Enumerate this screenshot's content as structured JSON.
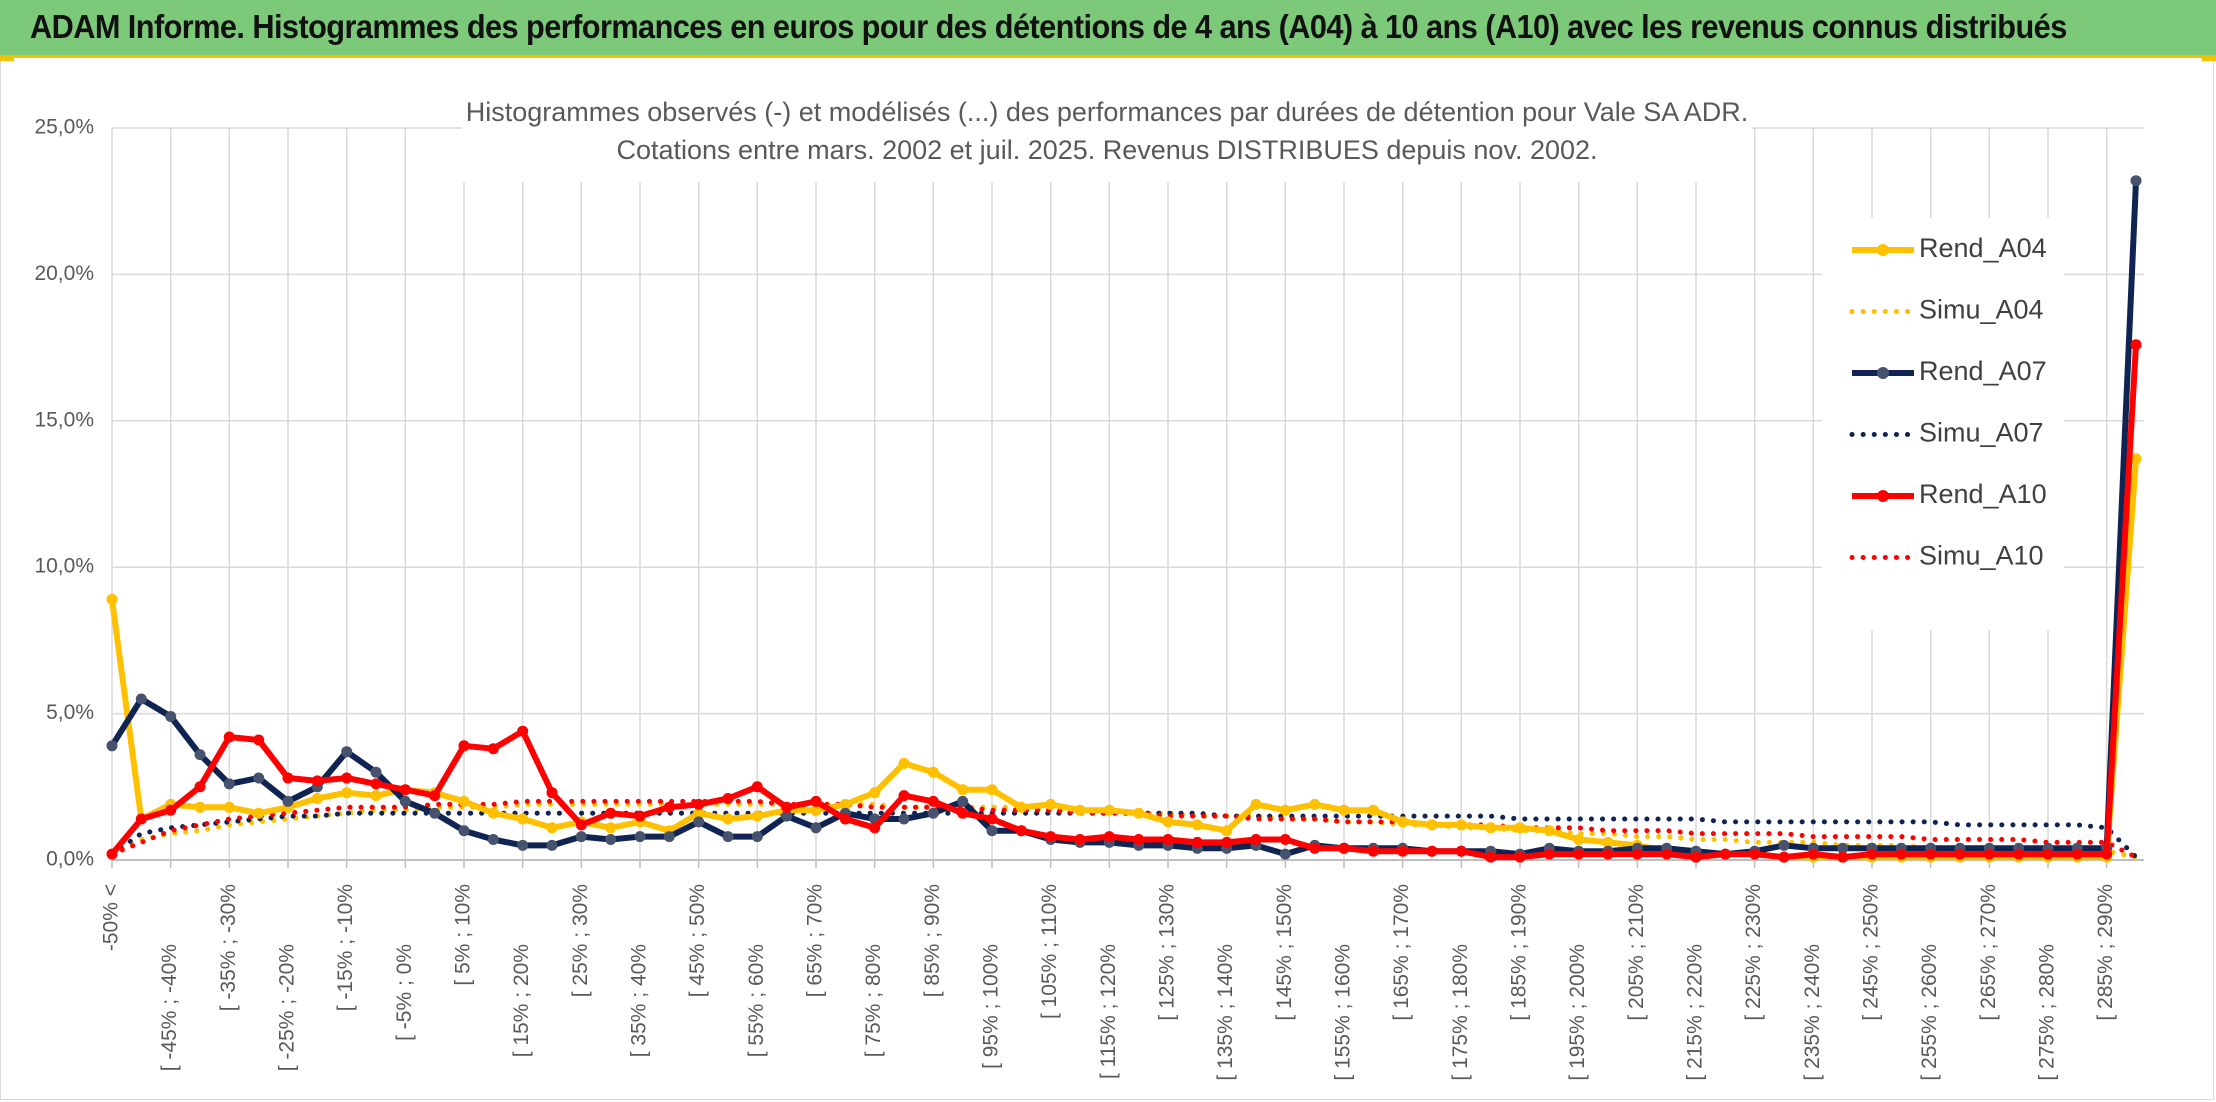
{
  "banner": {
    "title": "ADAM Informe. Histogrammes des performances en euros pour des détentions de 4 ans (A04) à 10 ans (A10) avec les revenus connus distribués",
    "accent": "#f2c200",
    "background": "#7dc97a"
  },
  "chart_data": {
    "type": "line",
    "title_lines": [
      "Histogrammes observés (-) et modélisés (...) des performances par durées de détention pour Vale SA ADR.",
      "Cotations entre mars. 2002 et juil. 2025. Revenus DISTRIBUES depuis nov. 2002."
    ],
    "ylim": [
      0,
      25
    ],
    "y_ticks": [
      "0,0%",
      "5,0%",
      "10,0%",
      "15,0%",
      "20,0%",
      "25,0%"
    ],
    "x_tick_labels": [
      "-50% <",
      "[ -45% ; -40%",
      "[ -35% ; -30%",
      "[ -25% ; -20%",
      "[ -15% ; -10%",
      "[ -5% ; 0%",
      "[ 5% ; 10%",
      "[ 15% ; 20%",
      "[ 25% ; 30%",
      "[ 35% ; 40%",
      "[ 45% ; 50%",
      "[ 55% ; 60%",
      "[ 65% ; 70%",
      "[ 75% ; 80%",
      "[ 85% ; 90%",
      "[ 95% ; 100%",
      "[ 105% ; 110%",
      "[ 115% ; 120%",
      "[ 125% ; 130%",
      "[ 135% ; 140%",
      "[ 145% ; 150%",
      "[ 155% ; 160%",
      "[ 165% ; 170%",
      "[ 175% ; 180%",
      "[ 185% ; 190%",
      "[ 195% ; 200%",
      "[ 205% ; 210%",
      "[ 215% ; 220%",
      "[ 225% ; 230%",
      "[ 235% ; 240%",
      "[ 245% ; 250%",
      "[ 255% ; 260%",
      "[ 265% ; 270%",
      "[ 275% ; 280%",
      "[ 285% ; 290%"
    ],
    "n_points": 70,
    "grid": true,
    "legend_position": "right",
    "series": [
      {
        "name": "Rend_A04",
        "color": "#ffc000",
        "style": "solid",
        "values": [
          8.9,
          1.4,
          1.9,
          1.8,
          1.8,
          1.6,
          1.8,
          2.1,
          2.3,
          2.2,
          2.4,
          2.3,
          2.0,
          1.6,
          1.4,
          1.1,
          1.3,
          1.1,
          1.3,
          1.0,
          1.6,
          1.4,
          1.5,
          1.7,
          1.7,
          1.9,
          2.3,
          3.3,
          3.0,
          2.4,
          2.4,
          1.8,
          1.9,
          1.7,
          1.7,
          1.6,
          1.3,
          1.2,
          1.0,
          1.9,
          1.7,
          1.9,
          1.7,
          1.7,
          1.3,
          1.2,
          1.2,
          1.1,
          1.1,
          1.0,
          0.7,
          0.6,
          0.5,
          0.3,
          0.2,
          0.2,
          0.2,
          0.1,
          0.1,
          0.1,
          0.1,
          0.1,
          0.1,
          0.1,
          0.1,
          0.1,
          0.1,
          0.1,
          0.1,
          13.7
        ]
      },
      {
        "name": "Simu_A04",
        "color": "#ffc000",
        "style": "dotted",
        "values": [
          0.2,
          0.7,
          0.9,
          1.0,
          1.2,
          1.3,
          1.4,
          1.5,
          1.6,
          1.7,
          1.7,
          1.8,
          1.8,
          1.8,
          1.9,
          1.9,
          1.9,
          1.9,
          1.9,
          1.9,
          1.9,
          1.9,
          1.9,
          1.9,
          1.9,
          1.9,
          1.9,
          1.8,
          1.8,
          1.8,
          1.8,
          1.8,
          1.7,
          1.7,
          1.7,
          1.6,
          1.6,
          1.5,
          1.5,
          1.5,
          1.4,
          1.4,
          1.3,
          1.3,
          1.2,
          1.2,
          1.1,
          1.1,
          1.0,
          1.0,
          0.9,
          0.9,
          0.8,
          0.8,
          0.7,
          0.7,
          0.6,
          0.6,
          0.6,
          0.5,
          0.5,
          0.5,
          0.4,
          0.4,
          0.4,
          0.3,
          0.3,
          0.3,
          0.3,
          0.1
        ]
      },
      {
        "name": "Rend_A07",
        "color": "#0f2452",
        "style": "solid",
        "values": [
          3.9,
          5.5,
          4.9,
          3.6,
          2.6,
          2.8,
          2.0,
          2.5,
          3.7,
          3.0,
          2.0,
          1.6,
          1.0,
          0.7,
          0.5,
          0.5,
          0.8,
          0.7,
          0.8,
          0.8,
          1.3,
          0.8,
          0.8,
          1.5,
          1.1,
          1.6,
          1.4,
          1.4,
          1.6,
          2.0,
          1.0,
          1.0,
          0.7,
          0.6,
          0.6,
          0.5,
          0.5,
          0.4,
          0.4,
          0.5,
          0.2,
          0.5,
          0.4,
          0.4,
          0.4,
          0.3,
          0.3,
          0.3,
          0.2,
          0.4,
          0.3,
          0.3,
          0.4,
          0.4,
          0.3,
          0.2,
          0.3,
          0.5,
          0.4,
          0.4,
          0.4,
          0.4,
          0.4,
          0.4,
          0.4,
          0.4,
          0.4,
          0.4,
          0.4,
          23.2
        ]
      },
      {
        "name": "Simu_A07",
        "color": "#0f2452",
        "style": "dotted",
        "values": [
          0.2,
          0.9,
          1.1,
          1.2,
          1.3,
          1.4,
          1.5,
          1.5,
          1.6,
          1.6,
          1.6,
          1.6,
          1.6,
          1.6,
          1.6,
          1.6,
          1.6,
          1.6,
          1.6,
          1.6,
          1.6,
          1.6,
          1.6,
          1.6,
          1.6,
          1.6,
          1.6,
          1.6,
          1.6,
          1.6,
          1.6,
          1.6,
          1.6,
          1.6,
          1.6,
          1.6,
          1.6,
          1.6,
          1.5,
          1.5,
          1.5,
          1.5,
          1.5,
          1.5,
          1.5,
          1.5,
          1.5,
          1.5,
          1.4,
          1.4,
          1.4,
          1.4,
          1.4,
          1.4,
          1.4,
          1.3,
          1.3,
          1.3,
          1.3,
          1.3,
          1.3,
          1.3,
          1.3,
          1.2,
          1.2,
          1.2,
          1.2,
          1.2,
          1.1,
          0.1
        ]
      },
      {
        "name": "Rend_A10",
        "color": "#ff0000",
        "style": "solid",
        "values": [
          0.2,
          1.4,
          1.7,
          2.5,
          4.2,
          4.1,
          2.8,
          2.7,
          2.8,
          2.6,
          2.4,
          2.2,
          3.9,
          3.8,
          4.4,
          2.3,
          1.2,
          1.6,
          1.5,
          1.8,
          1.9,
          2.1,
          2.5,
          1.8,
          2.0,
          1.4,
          1.1,
          2.2,
          2.0,
          1.6,
          1.4,
          1.0,
          0.8,
          0.7,
          0.8,
          0.7,
          0.7,
          0.6,
          0.6,
          0.7,
          0.7,
          0.4,
          0.4,
          0.3,
          0.3,
          0.3,
          0.3,
          0.1,
          0.1,
          0.2,
          0.2,
          0.2,
          0.2,
          0.2,
          0.1,
          0.2,
          0.2,
          0.1,
          0.2,
          0.1,
          0.2,
          0.2,
          0.2,
          0.2,
          0.2,
          0.2,
          0.2,
          0.2,
          0.2,
          17.6
        ]
      },
      {
        "name": "Simu_A10",
        "color": "#ff0000",
        "style": "dotted",
        "values": [
          0.2,
          0.6,
          1.0,
          1.2,
          1.4,
          1.5,
          1.6,
          1.7,
          1.8,
          1.8,
          1.8,
          1.9,
          1.9,
          1.9,
          2.0,
          2.0,
          2.0,
          2.0,
          2.0,
          2.0,
          2.0,
          2.0,
          2.0,
          1.9,
          1.9,
          1.9,
          1.8,
          1.8,
          1.8,
          1.8,
          1.7,
          1.7,
          1.7,
          1.6,
          1.6,
          1.6,
          1.5,
          1.5,
          1.5,
          1.4,
          1.4,
          1.4,
          1.3,
          1.3,
          1.3,
          1.2,
          1.2,
          1.2,
          1.1,
          1.1,
          1.1,
          1.0,
          1.0,
          1.0,
          0.9,
          0.9,
          0.9,
          0.9,
          0.8,
          0.8,
          0.8,
          0.8,
          0.7,
          0.7,
          0.7,
          0.7,
          0.6,
          0.6,
          0.6,
          0.1
        ]
      }
    ]
  }
}
